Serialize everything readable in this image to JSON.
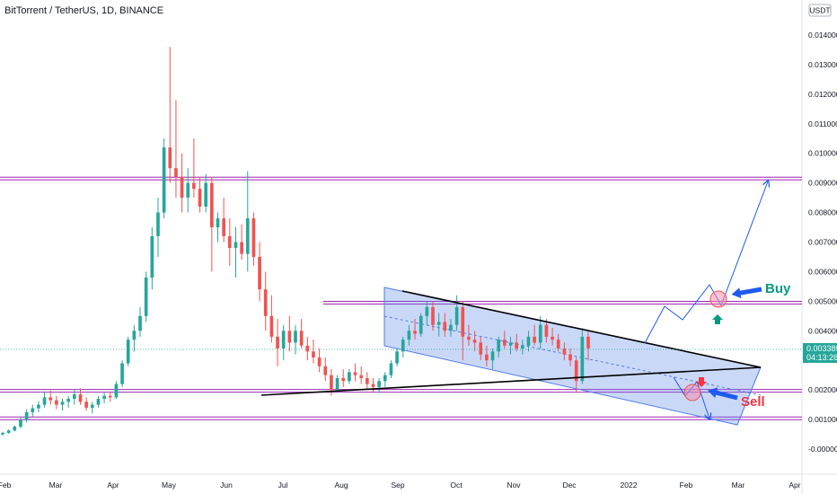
{
  "header": {
    "title": "BitTorrent / TetherUS, 1D, BINANCE",
    "currency": "USDT"
  },
  "price_tag": {
    "value": "0.003389",
    "countdown": "04:13:26",
    "color": "#26a69a"
  },
  "colors": {
    "candle_up": "#26a69a",
    "candle_down": "#ef5350",
    "sr_line": "#9c27b0",
    "channel_fill": "#4e7ee8",
    "projection": "#1e5bf0",
    "buy_text": "#089981",
    "sell_text": "#f23645"
  },
  "annotations": {
    "buy": "Buy",
    "sell": "Sell"
  },
  "chart_data": {
    "type": "candlestick",
    "title": "BitTorrent / TetherUS, 1D, BINANCE",
    "y_ticks": [
      "0.014000",
      "0.013000",
      "0.012000",
      "0.011000",
      "0.010000",
      "0.009000",
      "0.008000",
      "0.007000",
      "0.006000",
      "0.005000",
      "0.004000",
      "0.003000",
      "0.002000",
      "0.001000",
      "-0.000000"
    ],
    "x_ticks": [
      "Feb",
      "Mar",
      "Apr",
      "May",
      "Jun",
      "Jul",
      "Aug",
      "Sep",
      "Oct",
      "Nov",
      "Dec",
      "2022",
      "Feb",
      "Mar",
      "Apr"
    ],
    "ylim": [
      -0.0003,
      0.01505
    ],
    "last_price": 0.003389,
    "horizontal_levels": [
      0.00915,
      0.00495,
      0.00197,
      0.00104
    ],
    "series": [
      {
        "name": "BTT/USDT",
        "ohlc": [
          [
            0.0005,
            0.00058,
            0.00045,
            0.00055
          ],
          [
            0.00055,
            0.00066,
            0.00052,
            0.00063
          ],
          [
            0.00063,
            0.0008,
            0.0006,
            0.00076
          ],
          [
            0.00076,
            0.0011,
            0.0007,
            0.00098
          ],
          [
            0.00098,
            0.00135,
            0.0009,
            0.00125
          ],
          [
            0.00125,
            0.0015,
            0.0011,
            0.00138
          ],
          [
            0.00138,
            0.00162,
            0.00125,
            0.0015
          ],
          [
            0.0015,
            0.00195,
            0.0014,
            0.00175
          ],
          [
            0.00175,
            0.00198,
            0.0015,
            0.00165
          ],
          [
            0.00165,
            0.0018,
            0.00135,
            0.0015
          ],
          [
            0.0015,
            0.0017,
            0.0013,
            0.0016
          ],
          [
            0.0016,
            0.0018,
            0.0014,
            0.0017
          ],
          [
            0.0017,
            0.002,
            0.0015,
            0.00185
          ],
          [
            0.00185,
            0.00205,
            0.0015,
            0.0016
          ],
          [
            0.0016,
            0.00175,
            0.0013,
            0.0014
          ],
          [
            0.0014,
            0.0016,
            0.0012,
            0.0015
          ],
          [
            0.0015,
            0.0018,
            0.0014,
            0.0017
          ],
          [
            0.0017,
            0.0019,
            0.00155,
            0.0018
          ],
          [
            0.0018,
            0.00195,
            0.0016,
            0.00175
          ],
          [
            0.00175,
            0.0023,
            0.0017,
            0.0022
          ],
          [
            0.0022,
            0.003,
            0.0021,
            0.0029
          ],
          [
            0.0029,
            0.0038,
            0.0028,
            0.0037
          ],
          [
            0.0037,
            0.0042,
            0.0033,
            0.004
          ],
          [
            0.004,
            0.0048,
            0.0038,
            0.0045
          ],
          [
            0.0045,
            0.006,
            0.0043,
            0.0058
          ],
          [
            0.0058,
            0.0075,
            0.0054,
            0.0072
          ],
          [
            0.0072,
            0.0085,
            0.0065,
            0.008
          ],
          [
            0.008,
            0.0105,
            0.0078,
            0.0102
          ],
          [
            0.0102,
            0.0136,
            0.009,
            0.0095
          ],
          [
            0.0095,
            0.0118,
            0.0085,
            0.0092
          ],
          [
            0.0092,
            0.01,
            0.008,
            0.0085
          ],
          [
            0.0085,
            0.0095,
            0.008,
            0.009
          ],
          [
            0.009,
            0.0105,
            0.0085,
            0.0088
          ],
          [
            0.0088,
            0.0092,
            0.008,
            0.0082
          ],
          [
            0.0082,
            0.0093,
            0.008,
            0.009
          ],
          [
            0.009,
            0.0092,
            0.006,
            0.0075
          ],
          [
            0.0075,
            0.008,
            0.007,
            0.0078
          ],
          [
            0.0078,
            0.0085,
            0.007,
            0.0072
          ],
          [
            0.0072,
            0.0078,
            0.0062,
            0.0068
          ],
          [
            0.0068,
            0.0075,
            0.0058,
            0.007
          ],
          [
            0.007,
            0.0076,
            0.0064,
            0.0066
          ],
          [
            0.0066,
            0.0094,
            0.006,
            0.0078
          ],
          [
            0.0078,
            0.008,
            0.0062,
            0.0065
          ],
          [
            0.0065,
            0.007,
            0.005,
            0.0054
          ],
          [
            0.0054,
            0.006,
            0.004,
            0.0045
          ],
          [
            0.0045,
            0.0052,
            0.0036,
            0.0038
          ],
          [
            0.0038,
            0.0044,
            0.0028,
            0.0034
          ],
          [
            0.0034,
            0.0042,
            0.003,
            0.004
          ],
          [
            0.004,
            0.0045,
            0.0033,
            0.0036
          ],
          [
            0.0036,
            0.0042,
            0.0032,
            0.004
          ],
          [
            0.004,
            0.0044,
            0.0034,
            0.0035
          ],
          [
            0.0035,
            0.0038,
            0.003,
            0.0033
          ],
          [
            0.0033,
            0.0037,
            0.0029,
            0.0031
          ],
          [
            0.0031,
            0.0034,
            0.0026,
            0.0028
          ],
          [
            0.0028,
            0.0031,
            0.0023,
            0.0025
          ],
          [
            0.0025,
            0.0027,
            0.0018,
            0.002
          ],
          [
            0.002,
            0.0025,
            0.0019,
            0.0024
          ],
          [
            0.0024,
            0.0027,
            0.0021,
            0.0023
          ],
          [
            0.0023,
            0.0027,
            0.0022,
            0.0026
          ],
          [
            0.0026,
            0.0029,
            0.0023,
            0.0025
          ],
          [
            0.0025,
            0.0028,
            0.0022,
            0.0024
          ],
          [
            0.0024,
            0.0026,
            0.002,
            0.0022
          ],
          [
            0.0022,
            0.0024,
            0.0019,
            0.0021
          ],
          [
            0.0021,
            0.0024,
            0.0019,
            0.0023
          ],
          [
            0.0023,
            0.0026,
            0.0021,
            0.0025
          ],
          [
            0.0025,
            0.003,
            0.0024,
            0.0029
          ],
          [
            0.0029,
            0.0034,
            0.0028,
            0.0033
          ],
          [
            0.0033,
            0.0038,
            0.0031,
            0.0037
          ],
          [
            0.0037,
            0.0042,
            0.0035,
            0.004
          ],
          [
            0.004,
            0.0044,
            0.0037,
            0.0039
          ],
          [
            0.0039,
            0.0046,
            0.0038,
            0.0045
          ],
          [
            0.0045,
            0.005,
            0.0042,
            0.0048
          ],
          [
            0.0048,
            0.005,
            0.004,
            0.0042
          ],
          [
            0.0042,
            0.0046,
            0.0038,
            0.0043
          ],
          [
            0.0043,
            0.0046,
            0.0038,
            0.004
          ],
          [
            0.004,
            0.0044,
            0.0038,
            0.0042
          ],
          [
            0.0042,
            0.0052,
            0.004,
            0.0048
          ],
          [
            0.0048,
            0.005,
            0.003,
            0.0038
          ],
          [
            0.0038,
            0.0042,
            0.0035,
            0.0037
          ],
          [
            0.0037,
            0.004,
            0.0033,
            0.0036
          ],
          [
            0.0036,
            0.0038,
            0.003,
            0.0032
          ],
          [
            0.0032,
            0.0035,
            0.0028,
            0.003
          ],
          [
            0.003,
            0.0034,
            0.0027,
            0.0033
          ],
          [
            0.0033,
            0.0038,
            0.0031,
            0.0037
          ],
          [
            0.0037,
            0.004,
            0.0034,
            0.0035
          ],
          [
            0.0035,
            0.0038,
            0.0032,
            0.0036
          ],
          [
            0.0036,
            0.0039,
            0.0033,
            0.0034
          ],
          [
            0.0034,
            0.0037,
            0.0032,
            0.0035
          ],
          [
            0.0035,
            0.004,
            0.0033,
            0.0038
          ],
          [
            0.0038,
            0.0042,
            0.0035,
            0.0036
          ],
          [
            0.0036,
            0.0045,
            0.0034,
            0.0042
          ],
          [
            0.0042,
            0.0044,
            0.0036,
            0.0038
          ],
          [
            0.0038,
            0.0041,
            0.0035,
            0.0037
          ],
          [
            0.0037,
            0.0039,
            0.0033,
            0.0034
          ],
          [
            0.0034,
            0.0036,
            0.003,
            0.0032
          ],
          [
            0.0032,
            0.0034,
            0.0028,
            0.003
          ],
          [
            0.003,
            0.0031,
            0.0019,
            0.0023
          ],
          [
            0.0023,
            0.0041,
            0.0022,
            0.0038
          ],
          [
            0.0038,
            0.004,
            0.003,
            0.0034
          ]
        ]
      }
    ]
  }
}
